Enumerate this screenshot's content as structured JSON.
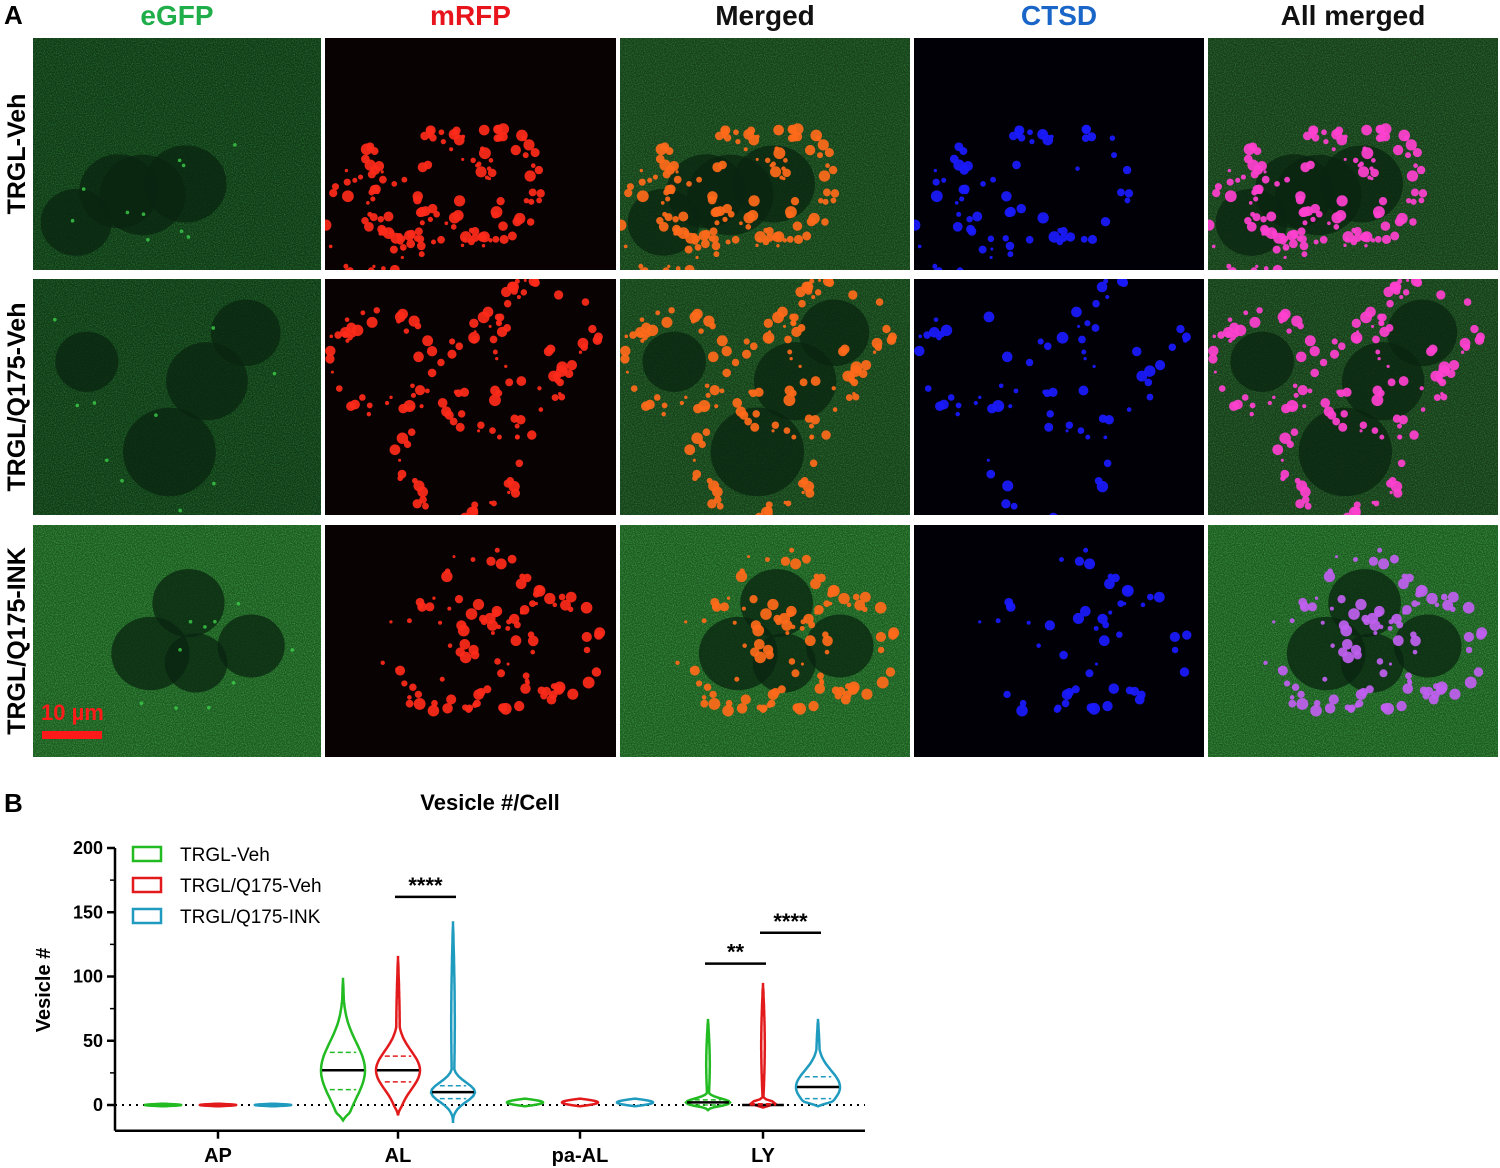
{
  "panel_a": {
    "letter": "A",
    "columns": [
      {
        "label": "eGFP",
        "color": "#1fae4a",
        "channel": "green"
      },
      {
        "label": "mRFP",
        "color": "#e8141c",
        "channel": "red"
      },
      {
        "label": "Merged",
        "color": "#111111",
        "channel": "merged"
      },
      {
        "label": "CTSD",
        "color": "#1a66c8",
        "channel": "blue"
      },
      {
        "label": "All merged",
        "color": "#111111",
        "channel": "allmerged"
      }
    ],
    "rows": [
      {
        "label": "TRGL-Veh"
      },
      {
        "label": "TRGL/Q175-Veh"
      },
      {
        "label": "TRGL/Q175-INK"
      }
    ],
    "scale_bar": {
      "label": "10 µm",
      "color": "#ff1a1a"
    }
  },
  "panel_b": {
    "letter": "B",
    "chart_data": {
      "type": "violin",
      "title": "Vesicle #/Cell",
      "ylabel": "Vesicle #",
      "xlabel": "",
      "ylim": [
        -20,
        200
      ],
      "yticks": [
        "0",
        "50",
        "100",
        "150",
        "200"
      ],
      "categories": [
        "AP",
        "AL",
        "pa-AL",
        "LY"
      ],
      "series": [
        {
          "name": "TRGL-Veh",
          "color": "#22bb22",
          "groups": [
            {
              "median": 0,
              "q1": 0,
              "q3": 0,
              "min": -1,
              "max": 1
            },
            {
              "median": 27,
              "q1": 12,
              "q3": 41,
              "min": -12,
              "max": 99
            },
            {
              "median": 0,
              "q1": 0,
              "q3": 0,
              "min": -1,
              "max": 5
            },
            {
              "median": 2,
              "q1": 0,
              "q3": 4,
              "min": -4,
              "max": 67
            }
          ]
        },
        {
          "name": "TRGL/Q175-Veh",
          "color": "#e31a1c",
          "groups": [
            {
              "median": 0,
              "q1": 0,
              "q3": 0,
              "min": -1,
              "max": 1
            },
            {
              "median": 27,
              "q1": 18,
              "q3": 38,
              "min": -8,
              "max": 116
            },
            {
              "median": 0,
              "q1": 0,
              "q3": 0,
              "min": -1,
              "max": 5
            },
            {
              "median": 0,
              "q1": 0,
              "q3": 1,
              "min": -2,
              "max": 95
            }
          ]
        },
        {
          "name": "TRGL/Q175-INK",
          "color": "#1f9bbf",
          "groups": [
            {
              "median": 0,
              "q1": 0,
              "q3": 0,
              "min": -1,
              "max": 1
            },
            {
              "median": 10,
              "q1": 5,
              "q3": 15,
              "min": -14,
              "max": 143
            },
            {
              "median": 0,
              "q1": 0,
              "q3": 0,
              "min": -1,
              "max": 5
            },
            {
              "median": 14,
              "q1": 5,
              "q3": 22,
              "min": -1,
              "max": 67
            }
          ]
        }
      ],
      "significance": [
        {
          "label": "****",
          "category": "AL",
          "from_series": 1,
          "to_series": 2,
          "y": 162
        },
        {
          "label": "**",
          "category": "LY",
          "from_series": 0,
          "to_series": 1,
          "y": 110
        },
        {
          "label": "****",
          "category": "LY",
          "from_series": 1,
          "to_series": 2,
          "y": 134
        }
      ],
      "legend_position": "top-left",
      "grid": false
    }
  }
}
